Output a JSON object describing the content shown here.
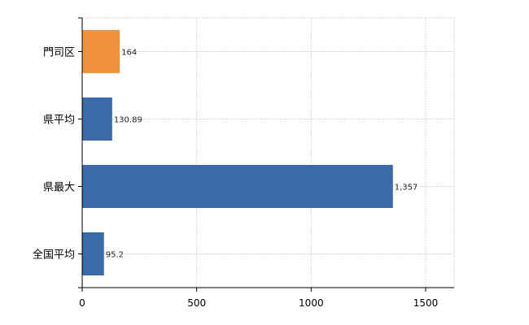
{
  "chart_data": {
    "type": "bar",
    "orientation": "horizontal",
    "title": "",
    "xlabel": "",
    "ylabel": "",
    "categories": [
      "門司区",
      "県平均",
      "県最大",
      "全国平均"
    ],
    "values": [
      164,
      130.89,
      1357,
      95.2
    ],
    "value_labels": [
      "164",
      "130.89",
      "1,357",
      "95.2"
    ],
    "bar_colors": [
      "#f0923c",
      "#3a6aa7",
      "#3a6aa7",
      "#3a6aa7"
    ],
    "xlim": [
      0,
      1625
    ],
    "xticks": [
      0,
      500,
      1000,
      1500
    ],
    "xtick_labels": [
      "0",
      "500",
      "1000",
      "1500"
    ],
    "grid": true,
    "legend": "none"
  }
}
